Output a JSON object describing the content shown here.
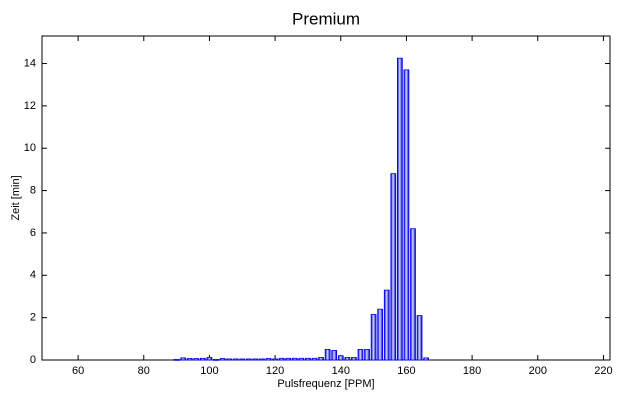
{
  "chart_data": {
    "type": "bar",
    "title": "Premium",
    "x_label": "Pulsfrequenz [PPM]",
    "y_label": "Zeit [min]",
    "x": [
      90,
      92,
      94,
      96,
      98,
      100,
      102,
      104,
      106,
      108,
      110,
      112,
      114,
      116,
      118,
      120,
      122,
      124,
      126,
      128,
      130,
      132,
      134,
      136,
      138,
      140,
      142,
      144,
      146,
      148,
      150,
      152,
      154,
      156,
      158,
      160,
      162,
      164,
      166
    ],
    "values": [
      0.03,
      0.1,
      0.07,
      0.07,
      0.08,
      0.12,
      0.03,
      0.07,
      0.05,
      0.05,
      0.05,
      0.05,
      0.05,
      0.05,
      0.07,
      0.05,
      0.08,
      0.08,
      0.08,
      0.08,
      0.08,
      0.08,
      0.12,
      0.5,
      0.45,
      0.2,
      0.12,
      0.12,
      0.5,
      0.5,
      2.15,
      2.4,
      3.3,
      8.8,
      14.25,
      13.7,
      6.2,
      2.1,
      0.1
    ],
    "color": "#0000ff",
    "xlim": [
      49,
      222
    ],
    "xticks": [
      60,
      80,
      100,
      120,
      140,
      160,
      180,
      200,
      220
    ],
    "ylim": [
      0,
      15.3
    ],
    "yticks": [
      0,
      2,
      4,
      6,
      8,
      10,
      12,
      14
    ]
  }
}
